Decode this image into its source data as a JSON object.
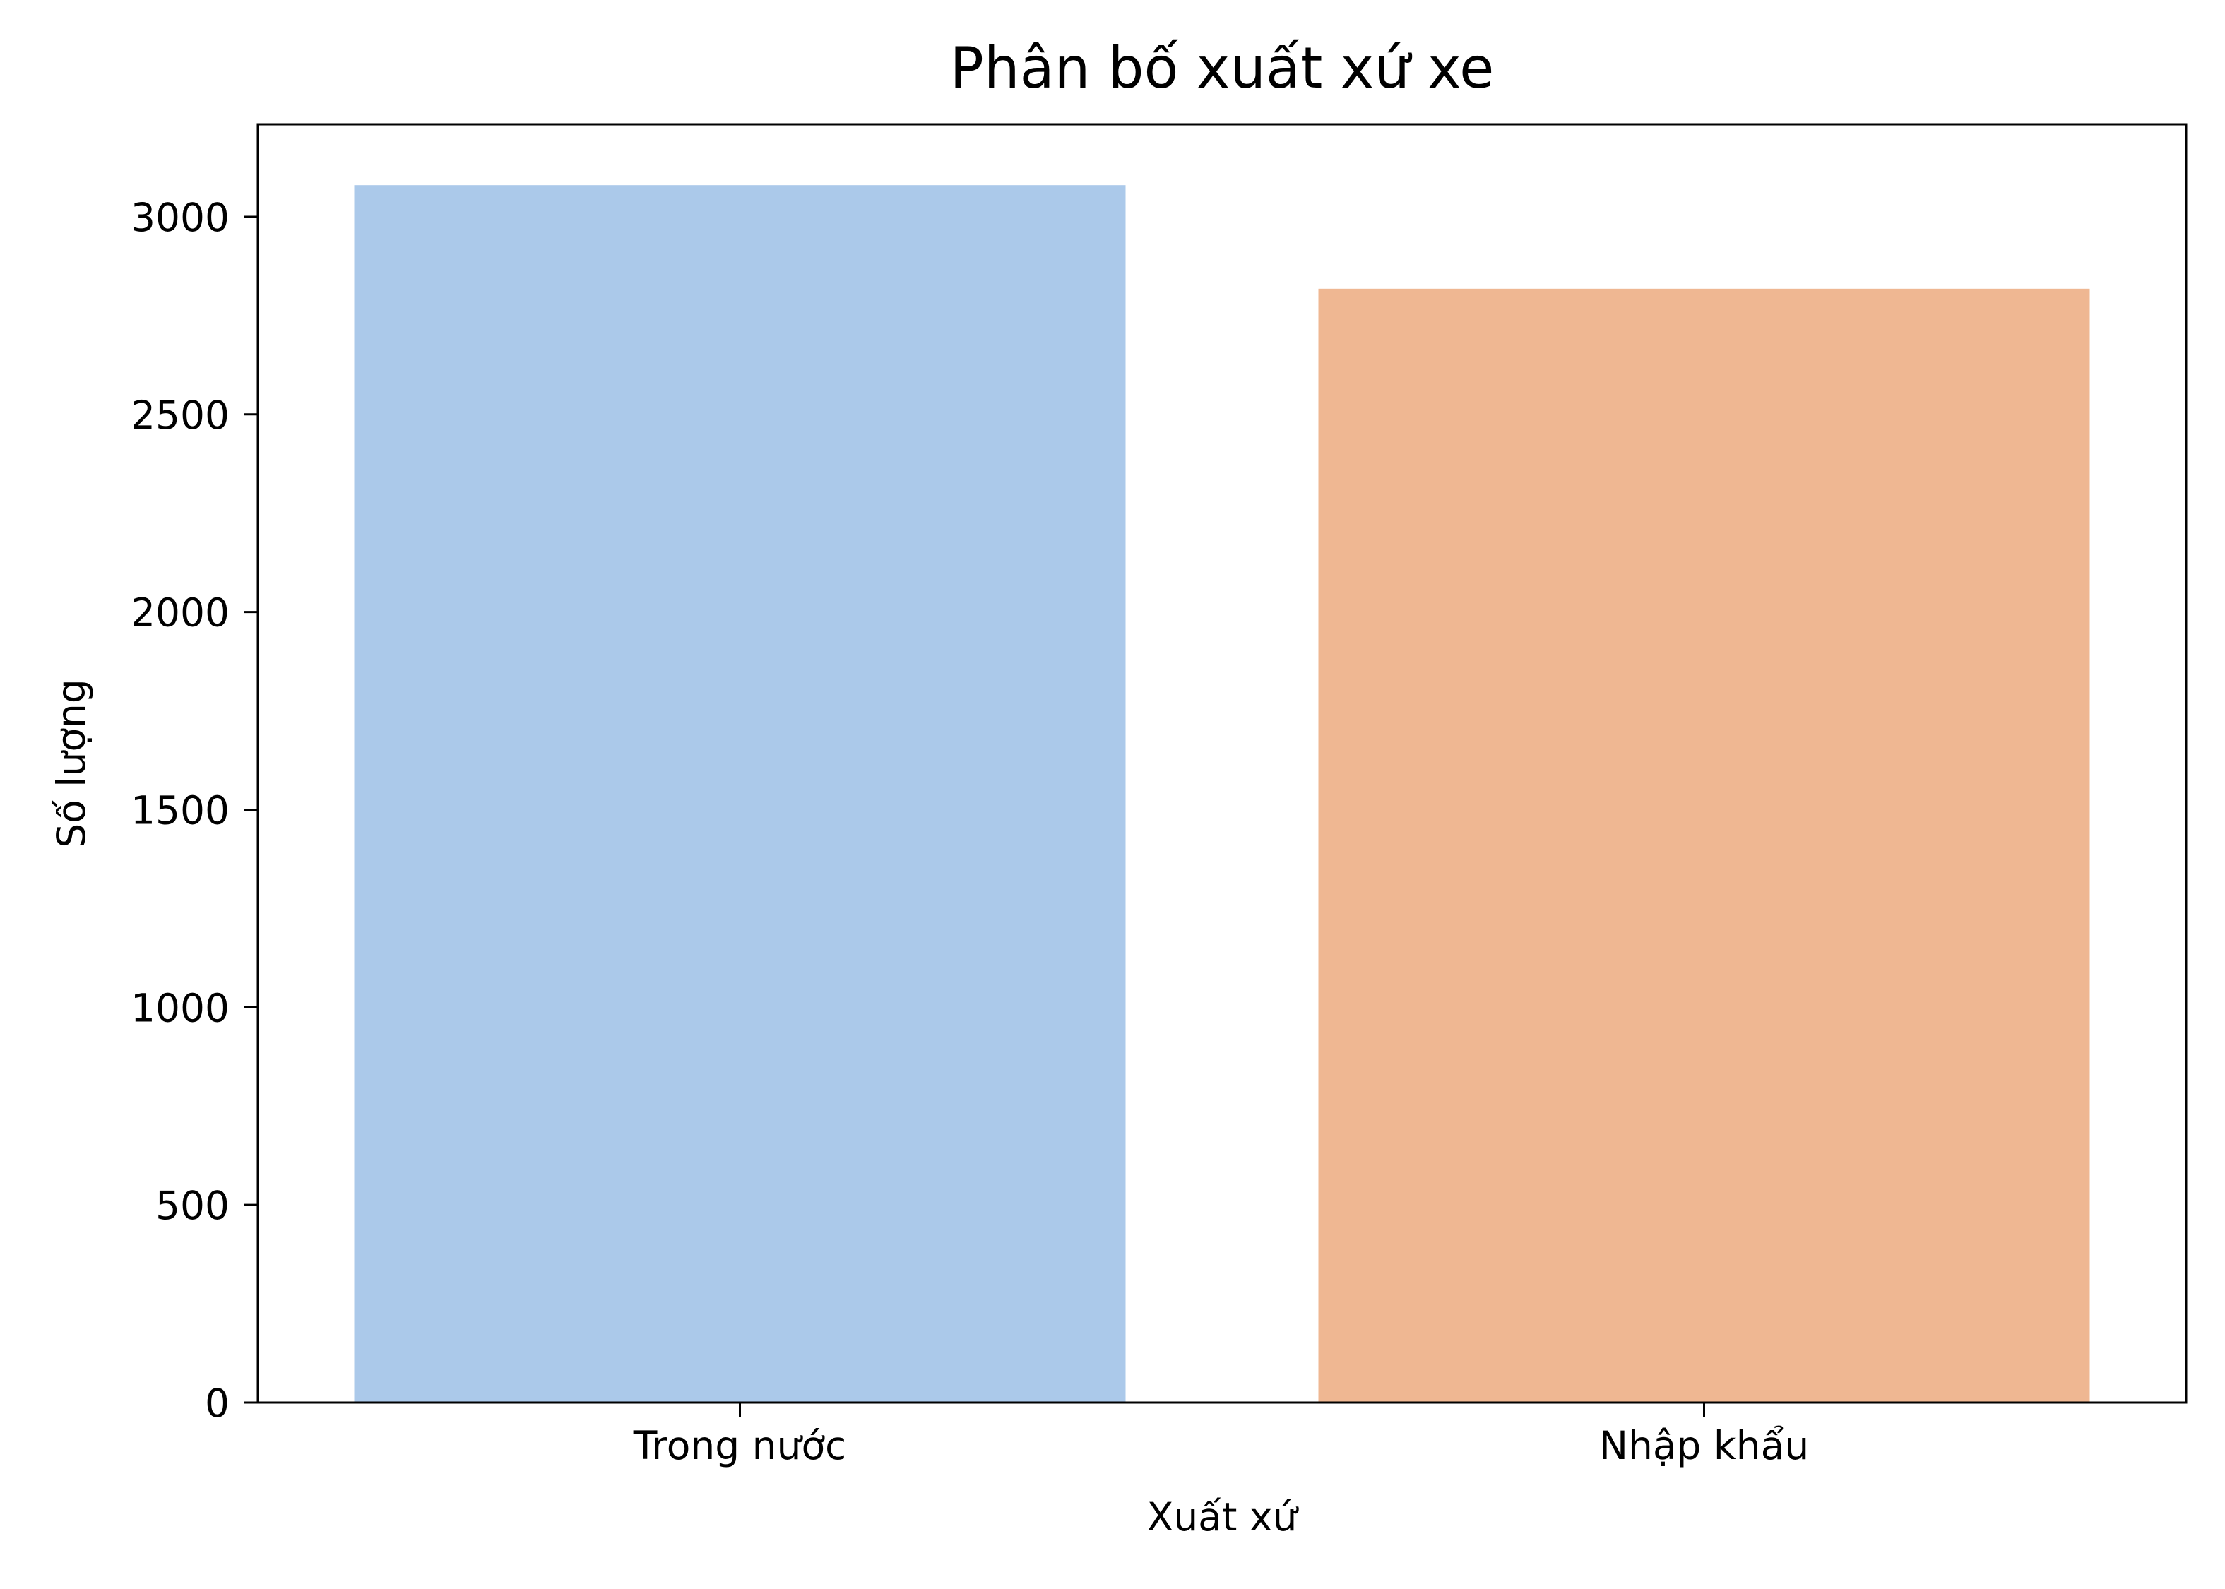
{
  "chart_data": {
    "type": "bar",
    "title": "Phân bố xuất xứ xe",
    "xlabel": "Xuất xứ",
    "ylabel": "Số lượng",
    "categories": [
      "Trong nước",
      "Nhập khẩu"
    ],
    "values": [
      3080,
      2818
    ],
    "colors": [
      "#abc9ea",
      "#efb792"
    ],
    "ylim": [
      0,
      3234
    ],
    "yticks": [
      0,
      500,
      1000,
      1500,
      2000,
      2500,
      3000
    ],
    "ytick_labels": [
      "0",
      "500",
      "1000",
      "1500",
      "2000",
      "2500",
      "3000"
    ],
    "grid": false,
    "legend": null
  }
}
